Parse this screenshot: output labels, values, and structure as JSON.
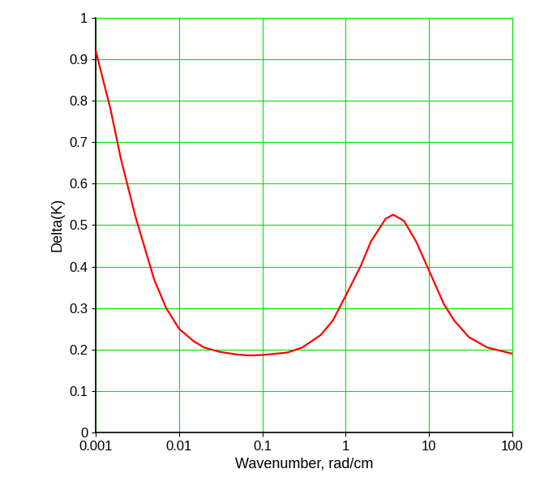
{
  "chart_data": {
    "type": "line",
    "x_label": "Wavenumber, rad/cm",
    "y_label": "Delta(K)",
    "log": "x",
    "grid": true,
    "xlim": [
      0.001,
      100
    ],
    "xticks": [
      0.001,
      0.01,
      0.1,
      1,
      10,
      100
    ],
    "ylim": [
      0,
      1
    ],
    "yticks": [
      0,
      0.1,
      0.2,
      0.3,
      0.4,
      0.5,
      0.6,
      0.7,
      0.8,
      0.9,
      1
    ],
    "series": [
      {
        "color": "#ff0000",
        "line_style": "solid",
        "x": [
          0.001,
          0.0015,
          0.002,
          0.003,
          0.005,
          0.007,
          0.01,
          0.015,
          0.02,
          0.03,
          0.05,
          0.07,
          0.1,
          0.2,
          0.3,
          0.5,
          0.7,
          1,
          1.5,
          2,
          3,
          3.7,
          5,
          7,
          10,
          15,
          20,
          30,
          50,
          100
        ],
        "values": [
          0.92,
          0.78,
          0.66,
          0.52,
          0.37,
          0.3,
          0.25,
          0.22,
          0.205,
          0.195,
          0.188,
          0.186,
          0.187,
          0.193,
          0.205,
          0.235,
          0.27,
          0.33,
          0.4,
          0.46,
          0.515,
          0.525,
          0.51,
          0.46,
          0.39,
          0.31,
          0.27,
          0.23,
          0.205,
          0.19
        ]
      }
    ]
  }
}
